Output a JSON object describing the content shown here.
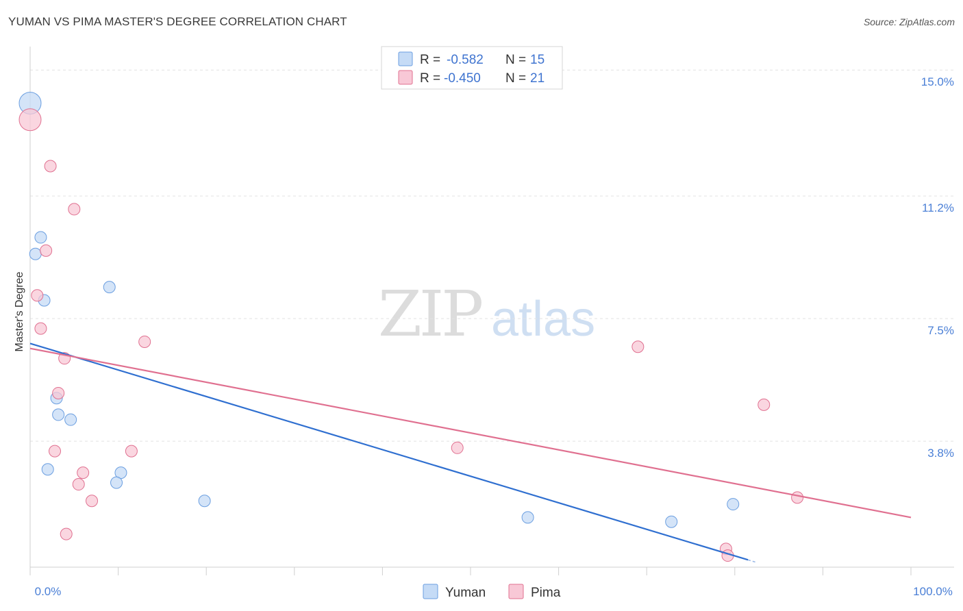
{
  "header": {
    "title": "YUMAN VS PIMA MASTER'S DEGREE CORRELATION CHART",
    "source": "Source: ZipAtlas.com"
  },
  "chart_data": {
    "type": "scatter",
    "title": "YUMAN VS PIMA MASTER'S DEGREE CORRELATION CHART",
    "xlabel": "",
    "ylabel": "Master's Degree",
    "xlim": [
      0,
      100
    ],
    "ylim": [
      0,
      15.5
    ],
    "x_tick_labels": [
      "0.0%",
      "100.0%"
    ],
    "y_ticks": [
      {
        "value": 3.8,
        "label": "3.8%"
      },
      {
        "value": 7.5,
        "label": "7.5%"
      },
      {
        "value": 11.2,
        "label": "11.2%"
      },
      {
        "value": 15.0,
        "label": "15.0%"
      }
    ],
    "grid": true,
    "watermark": {
      "zip": "ZIP",
      "atlas": "atlas"
    },
    "legend": {
      "placement": "top-center",
      "rows": [
        {
          "r_label": "R =",
          "r_value": "-0.582",
          "n_label": "N =",
          "n_value": "15"
        },
        {
          "r_label": "R =",
          "r_value": "-0.450",
          "n_label": "N =",
          "n_value": "21"
        }
      ]
    },
    "series": [
      {
        "name": "Yuman",
        "color": "#6a9ee0",
        "fill": "#c5dbf6",
        "trend": {
          "x": [
            0,
            81.5
          ],
          "y": [
            6.75,
            0.22
          ]
        },
        "trend_dash": {
          "x": [
            81.5,
            82.5
          ],
          "y": [
            0.22,
            0.14
          ]
        },
        "points": [
          {
            "x": 0.0,
            "y": 14.0,
            "large": true
          },
          {
            "x": 1.2,
            "y": 9.95
          },
          {
            "x": 0.6,
            "y": 9.45
          },
          {
            "x": 1.6,
            "y": 8.05
          },
          {
            "x": 9.0,
            "y": 8.45
          },
          {
            "x": 3.0,
            "y": 5.1
          },
          {
            "x": 3.2,
            "y": 4.6
          },
          {
            "x": 4.6,
            "y": 4.45
          },
          {
            "x": 2.0,
            "y": 2.95
          },
          {
            "x": 10.3,
            "y": 2.85
          },
          {
            "x": 9.8,
            "y": 2.55
          },
          {
            "x": 19.8,
            "y": 2.0
          },
          {
            "x": 56.5,
            "y": 1.5
          },
          {
            "x": 72.8,
            "y": 1.37
          },
          {
            "x": 79.8,
            "y": 1.9
          }
        ]
      },
      {
        "name": "Pima",
        "color": "#e07090",
        "fill": "#f8c8d6",
        "trend": {
          "x": [
            0,
            100
          ],
          "y": [
            6.6,
            1.5
          ]
        },
        "points": [
          {
            "x": 0.0,
            "y": 13.5,
            "large": true
          },
          {
            "x": 2.3,
            "y": 12.1
          },
          {
            "x": 5.0,
            "y": 10.8
          },
          {
            "x": 1.8,
            "y": 9.55
          },
          {
            "x": 0.8,
            "y": 8.2
          },
          {
            "x": 1.2,
            "y": 7.2
          },
          {
            "x": 13.0,
            "y": 6.8
          },
          {
            "x": 3.9,
            "y": 6.3
          },
          {
            "x": 3.2,
            "y": 5.25
          },
          {
            "x": 2.8,
            "y": 3.5
          },
          {
            "x": 11.5,
            "y": 3.5
          },
          {
            "x": 6.0,
            "y": 2.85
          },
          {
            "x": 5.5,
            "y": 2.5
          },
          {
            "x": 7.0,
            "y": 2.0
          },
          {
            "x": 4.1,
            "y": 1.0
          },
          {
            "x": 48.5,
            "y": 3.6
          },
          {
            "x": 69.0,
            "y": 6.65
          },
          {
            "x": 83.3,
            "y": 4.9
          },
          {
            "x": 87.1,
            "y": 2.1
          },
          {
            "x": 79.0,
            "y": 0.55
          },
          {
            "x": 79.2,
            "y": 0.35
          }
        ]
      }
    ]
  }
}
